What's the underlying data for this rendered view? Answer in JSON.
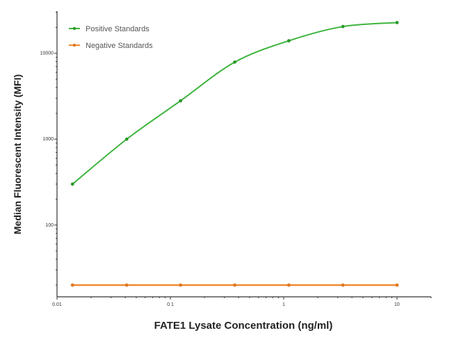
{
  "chart_data": {
    "type": "line",
    "title": "",
    "xlabel": "FATE1 Lysate Concentration (ng/ml)",
    "ylabel": "Median  Fluorescent Intensity  (MFI)",
    "xscale": "log",
    "yscale": "log",
    "xlim": [
      0.01,
      20
    ],
    "ylim": [
      14.6,
      31000
    ],
    "xticks": [
      0.01,
      0.1,
      1,
      10
    ],
    "xtick_labels": [
      "0.01",
      "0.1",
      "1",
      "10"
    ],
    "yticks": [
      100,
      1000,
      10000
    ],
    "ytick_labels": [
      "100",
      "1000",
      "10000"
    ],
    "grid": false,
    "legend_position": "top-left",
    "x": [
      0.0137,
      0.0412,
      0.123,
      0.37,
      1.11,
      3.33,
      10
    ],
    "series": [
      {
        "name": "Positive Standards",
        "color": "#3cb43c",
        "values": [
          300,
          1000,
          2800,
          7900,
          14000,
          20500,
          22800
        ]
      },
      {
        "name": "Negative Standards",
        "color": "#f08a30",
        "values": [
          20,
          20,
          20,
          20,
          20,
          20,
          20
        ]
      }
    ]
  }
}
